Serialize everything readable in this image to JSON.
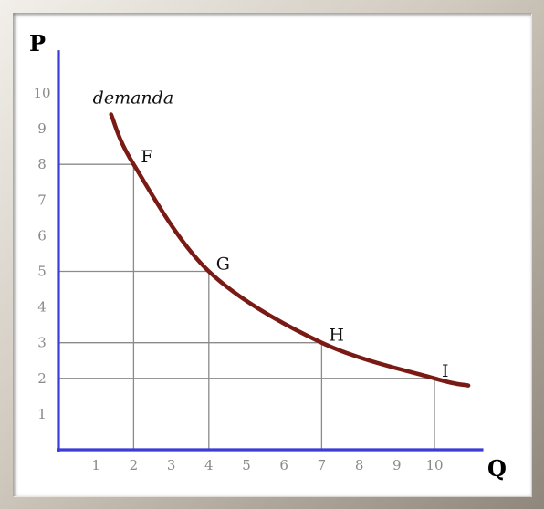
{
  "chart_data": {
    "type": "line",
    "xlabel": "Q",
    "ylabel": "P",
    "xlim": [
      0,
      11.3
    ],
    "ylim": [
      0,
      11.2
    ],
    "x_ticks": [
      "1",
      "2",
      "3",
      "4",
      "5",
      "6",
      "7",
      "8",
      "9",
      "10"
    ],
    "y_ticks": [
      "1",
      "2",
      "3",
      "4",
      "5",
      "6",
      "7",
      "8",
      "9",
      "10"
    ],
    "series": [
      {
        "name": "demanda",
        "color": "#7a1a14",
        "curve": [
          {
            "x": 1.4,
            "y": 9.4
          },
          {
            "x": 2,
            "y": 8
          },
          {
            "x": 4,
            "y": 5
          },
          {
            "x": 7,
            "y": 3
          },
          {
            "x": 10,
            "y": 2
          },
          {
            "x": 10.9,
            "y": 1.8
          }
        ]
      }
    ],
    "points": [
      {
        "label": "F",
        "x": 2,
        "y": 8
      },
      {
        "label": "G",
        "x": 4,
        "y": 5
      },
      {
        "label": "H",
        "x": 7,
        "y": 3
      },
      {
        "label": "I",
        "x": 10,
        "y": 2
      }
    ],
    "colors": {
      "axis": "#3b3bd6",
      "guides": "#8a8a8a",
      "curve": "#7a1a14"
    }
  }
}
